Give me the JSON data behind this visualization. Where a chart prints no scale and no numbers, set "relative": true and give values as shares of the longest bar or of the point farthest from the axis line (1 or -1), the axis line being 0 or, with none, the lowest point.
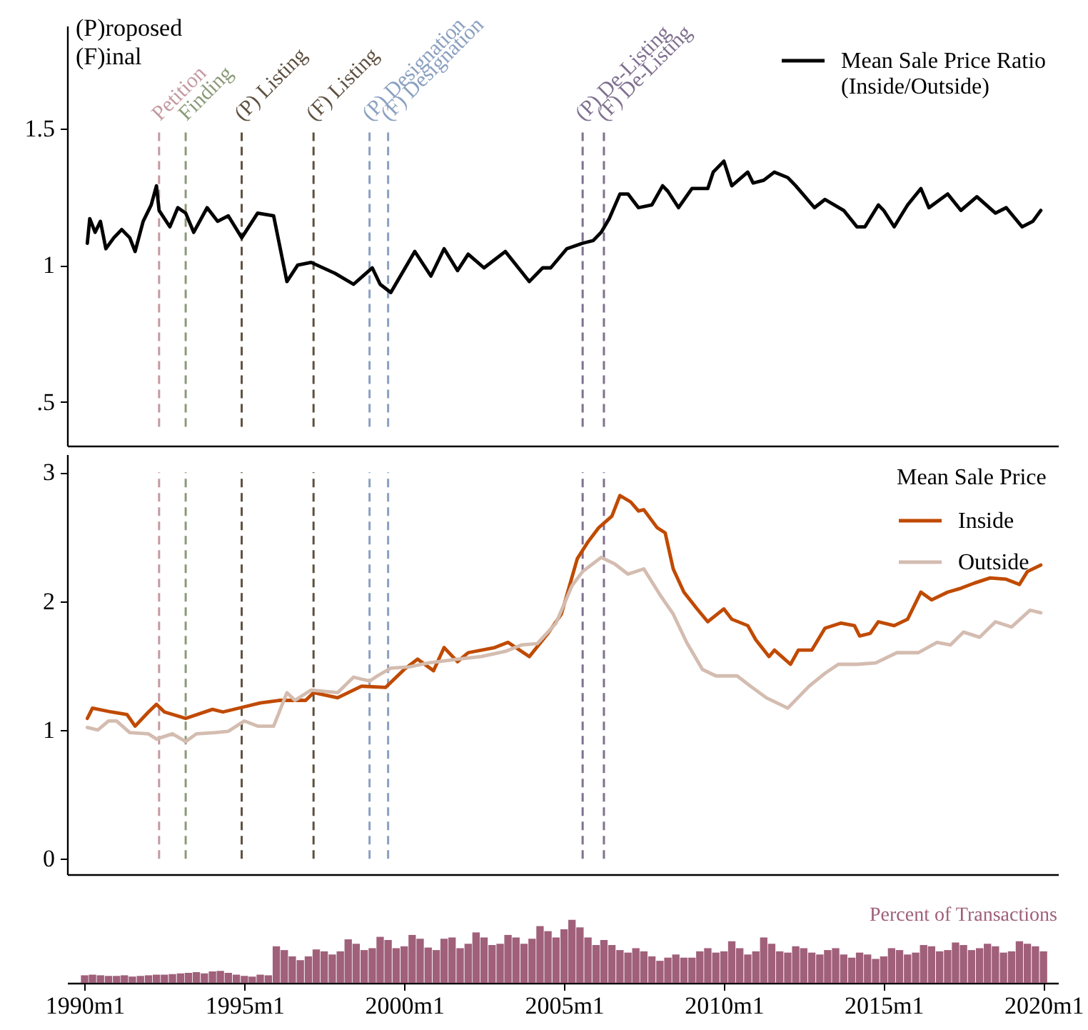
{
  "chart_data": [
    {
      "type": "line",
      "annotations": [
        "(P)roposed",
        "(F)inal"
      ],
      "xlim": [
        "1989-06-15",
        "2020-06-15"
      ],
      "ylim": [
        0.34,
        1.875
      ],
      "yticks": [
        {
          "value": 0.5,
          "label": ".5"
        },
        1,
        1.5
      ],
      "tick_labels": "y",
      "legend": "top right",
      "grid": false,
      "ref_lines": [
        {
          "axis": "x",
          "value": "1992-05",
          "label": "Petition",
          "color": "#c49aa2",
          "line_style": "dashed"
        },
        {
          "axis": "x",
          "value": "1993-03",
          "label": "Finding",
          "color": "#8a9a78",
          "line_style": "dashed"
        },
        {
          "axis": "x",
          "value": "1994-12",
          "label": "(P) Listing",
          "color": "#5e5040",
          "line_style": "dashed"
        },
        {
          "axis": "x",
          "value": "1997-03",
          "label": "(F) Listing",
          "color": "#5e5040",
          "line_style": "dashed"
        },
        {
          "axis": "x",
          "value": "1998-12",
          "label": "(P) Designation",
          "color": "#8aa0c0",
          "line_style": "dashed"
        },
        {
          "axis": "x",
          "value": "1999-07",
          "label": "(F) Designation",
          "color": "#8aa0c0",
          "line_style": "dashed"
        },
        {
          "axis": "x",
          "value": "2005-08",
          "label": "(P) De-Listing",
          "color": "#807090",
          "line_style": "dashed"
        },
        {
          "axis": "x",
          "value": "2006-04",
          "label": "(F) De-Listing",
          "color": "#807090",
          "line_style": "dashed"
        }
      ],
      "series": [
        {
          "name": "Mean Sale Price Ratio\n(Inside/Outside)",
          "color": "#000000",
          "x": [
            "1990-02",
            "1990-03",
            "1990-05",
            "1990-07",
            "1990-09",
            "1990-12",
            "1991-03",
            "1991-06",
            "1991-08",
            "1991-11",
            "1992-02",
            "1992-04",
            "1992-05",
            "1992-09",
            "1992-12",
            "1993-03",
            "1993-06",
            "1993-11",
            "1994-03",
            "1994-07",
            "1994-12",
            "1995-06",
            "1995-12",
            "1996-05",
            "1996-09",
            "1997-02",
            "1997-11",
            "1998-06",
            "1999-01",
            "1999-04",
            "1999-08",
            "2000-05",
            "2000-11",
            "2001-04",
            "2001-09",
            "2002-01",
            "2002-07",
            "2003-03",
            "2003-12",
            "2004-05",
            "2004-08",
            "2005-02",
            "2005-08",
            "2005-12",
            "2006-03",
            "2006-06",
            "2006-10",
            "2007-01",
            "2007-05",
            "2007-10",
            "2008-02",
            "2008-04",
            "2008-08",
            "2009-01",
            "2009-07",
            "2009-09",
            "2010-01",
            "2010-04",
            "2010-10",
            "2010-12",
            "2011-04",
            "2011-08",
            "2012-01",
            "2012-04",
            "2012-11",
            "2013-03",
            "2013-10",
            "2014-03",
            "2014-06",
            "2014-11",
            "2015-01",
            "2015-05",
            "2015-10",
            "2016-03",
            "2016-06",
            "2017-01",
            "2017-06",
            "2017-12",
            "2018-07",
            "2018-11",
            "2019-05",
            "2019-09",
            "2019-12"
          ],
          "values": [
            1.08,
            1.17,
            1.12,
            1.16,
            1.06,
            1.1,
            1.13,
            1.1,
            1.05,
            1.16,
            1.22,
            1.29,
            1.2,
            1.14,
            1.21,
            1.19,
            1.12,
            1.21,
            1.16,
            1.18,
            1.1,
            1.19,
            1.18,
            0.94,
            1.0,
            1.01,
            0.97,
            0.93,
            0.99,
            0.93,
            0.9,
            1.05,
            0.96,
            1.06,
            0.98,
            1.04,
            0.99,
            1.05,
            0.94,
            0.99,
            0.99,
            1.06,
            1.08,
            1.09,
            1.12,
            1.17,
            1.26,
            1.26,
            1.21,
            1.22,
            1.29,
            1.27,
            1.21,
            1.28,
            1.28,
            1.34,
            1.38,
            1.29,
            1.34,
            1.3,
            1.31,
            1.34,
            1.32,
            1.29,
            1.21,
            1.24,
            1.2,
            1.14,
            1.14,
            1.22,
            1.2,
            1.14,
            1.22,
            1.28,
            1.21,
            1.26,
            1.2,
            1.25,
            1.19,
            1.21,
            1.14,
            1.16,
            1.2
          ]
        }
      ]
    },
    {
      "type": "line",
      "xlim": [
        "1989-06-15",
        "2020-06-15"
      ],
      "ylim": [
        -0.12,
        3.14
      ],
      "yticks": [
        0,
        1,
        2,
        3
      ],
      "tick_labels": "y",
      "legend": "top right",
      "legend_title": "Mean Sale Price",
      "grid": false,
      "ref_lines": [
        {
          "axis": "x",
          "value": "1992-05",
          "color": "#c49aa2",
          "line_style": "dashed"
        },
        {
          "axis": "x",
          "value": "1993-03",
          "color": "#8a9a78",
          "line_style": "dashed"
        },
        {
          "axis": "x",
          "value": "1994-12",
          "color": "#5e5040",
          "line_style": "dashed"
        },
        {
          "axis": "x",
          "value": "1997-03",
          "color": "#5e5040",
          "line_style": "dashed"
        },
        {
          "axis": "x",
          "value": "1998-12",
          "color": "#8aa0c0",
          "line_style": "dashed"
        },
        {
          "axis": "x",
          "value": "1999-07",
          "color": "#8aa0c0",
          "line_style": "dashed"
        },
        {
          "axis": "x",
          "value": "2005-08",
          "color": "#807090",
          "line_style": "dashed"
        },
        {
          "axis": "x",
          "value": "2006-04",
          "color": "#807090",
          "line_style": "dashed"
        }
      ],
      "series": [
        {
          "name": "Inside",
          "color": "#c04a00",
          "x": [
            "1990-02",
            "1990-04",
            "1990-11",
            "1991-05",
            "1991-08",
            "1992-01",
            "1992-04",
            "1992-07",
            "1993-03",
            "1994-01",
            "1994-05",
            "1995-01",
            "1995-07",
            "1996-02",
            "1996-12",
            "1997-03",
            "1997-12",
            "1998-09",
            "1999-06",
            "2000-01",
            "2000-06",
            "2000-12",
            "2001-04",
            "2001-09",
            "2002-01",
            "2002-11",
            "2003-04",
            "2003-12",
            "2004-07",
            "2004-12",
            "2005-06",
            "2005-10",
            "2006-02",
            "2006-07",
            "2006-10",
            "2007-02",
            "2007-05",
            "2007-07",
            "2007-12",
            "2008-03",
            "2008-06",
            "2008-10",
            "2009-03",
            "2009-07",
            "2010-01",
            "2010-04",
            "2010-10",
            "2011-01",
            "2011-06",
            "2011-08",
            "2012-02",
            "2012-05",
            "2012-10",
            "2013-03",
            "2013-09",
            "2014-02",
            "2014-04",
            "2014-08",
            "2014-11",
            "2015-05",
            "2015-10",
            "2016-03",
            "2016-07",
            "2017-01",
            "2017-06",
            "2017-11",
            "2018-05",
            "2018-11",
            "2019-04",
            "2019-07",
            "2019-12"
          ],
          "values": [
            1.09,
            1.17,
            1.14,
            1.12,
            1.03,
            1.14,
            1.2,
            1.14,
            1.09,
            1.16,
            1.14,
            1.18,
            1.21,
            1.23,
            1.23,
            1.29,
            1.25,
            1.34,
            1.33,
            1.47,
            1.55,
            1.46,
            1.64,
            1.53,
            1.6,
            1.64,
            1.68,
            1.57,
            1.75,
            1.9,
            2.33,
            2.46,
            2.57,
            2.66,
            2.82,
            2.77,
            2.7,
            2.71,
            2.57,
            2.53,
            2.25,
            2.07,
            1.94,
            1.84,
            1.94,
            1.86,
            1.81,
            1.7,
            1.57,
            1.62,
            1.51,
            1.62,
            1.62,
            1.79,
            1.83,
            1.81,
            1.73,
            1.75,
            1.84,
            1.81,
            1.86,
            2.07,
            2.01,
            2.07,
            2.1,
            2.14,
            2.18,
            2.17,
            2.13,
            2.23,
            2.28
          ]
        },
        {
          "name": "Outside",
          "color": "#d4bcb0",
          "x": [
            "1990-02",
            "1990-06",
            "1990-10",
            "1991-01",
            "1991-06",
            "1992-01",
            "1992-04",
            "1992-10",
            "1993-03",
            "1993-07",
            "1994-02",
            "1994-07",
            "1995-01",
            "1995-06",
            "1995-12",
            "1996-05",
            "1996-08",
            "1997-02",
            "1997-12",
            "1998-06",
            "1998-12",
            "1999-03",
            "1999-08",
            "2000-03",
            "2000-10",
            "2001-09",
            "2002-06",
            "2003-03",
            "2003-09",
            "2004-03",
            "2004-10",
            "2005-04",
            "2005-08",
            "2006-03",
            "2006-08",
            "2007-01",
            "2007-07",
            "2008-01",
            "2008-06",
            "2008-11",
            "2009-05",
            "2009-10",
            "2010-06",
            "2010-11",
            "2011-05",
            "2012-01",
            "2012-09",
            "2013-03",
            "2013-08",
            "2014-03",
            "2014-10",
            "2015-06",
            "2016-02",
            "2016-09",
            "2017-02",
            "2017-07",
            "2018-01",
            "2018-07",
            "2019-01",
            "2019-08",
            "2019-12"
          ],
          "values": [
            1.02,
            1.0,
            1.07,
            1.07,
            0.98,
            0.97,
            0.93,
            0.97,
            0.91,
            0.97,
            0.98,
            0.99,
            1.07,
            1.03,
            1.03,
            1.29,
            1.23,
            1.31,
            1.29,
            1.41,
            1.38,
            1.42,
            1.48,
            1.49,
            1.52,
            1.55,
            1.57,
            1.61,
            1.66,
            1.67,
            1.83,
            2.12,
            2.23,
            2.34,
            2.29,
            2.21,
            2.25,
            2.05,
            1.9,
            1.68,
            1.47,
            1.42,
            1.42,
            1.34,
            1.25,
            1.17,
            1.34,
            1.44,
            1.51,
            1.51,
            1.52,
            1.6,
            1.6,
            1.68,
            1.66,
            1.76,
            1.72,
            1.84,
            1.8,
            1.93,
            1.91
          ]
        }
      ]
    },
    {
      "type": "bar",
      "relative": true,
      "xlim": [
        "1989-06-15",
        "2020-06-15"
      ],
      "legend": "top right",
      "grid": false,
      "xticks": [
        {
          "value": "1990-01",
          "label": "1990m1"
        },
        {
          "value": "1995-01",
          "label": "1995m1"
        },
        {
          "value": "2000-01",
          "label": "2000m1"
        },
        {
          "value": "2005-01",
          "label": "2005m1"
        },
        {
          "value": "2010-01",
          "label": "2010m1"
        },
        {
          "value": "2015-01",
          "label": "2015m1"
        },
        {
          "value": "2020-01",
          "label": "2020m1"
        }
      ],
      "series": [
        {
          "name": "Percent of Transactions",
          "color": "#a0607a",
          "x": [
            "1990-01",
            "1990-04",
            "1990-07",
            "1990-10",
            "1991-01",
            "1991-04",
            "1991-07",
            "1991-10",
            "1992-01",
            "1992-04",
            "1992-07",
            "1992-10",
            "1993-01",
            "1993-04",
            "1993-07",
            "1993-10",
            "1994-01",
            "1994-04",
            "1994-07",
            "1994-10",
            "1995-01",
            "1995-04",
            "1995-07",
            "1995-10",
            "1996-01",
            "1996-04",
            "1996-07",
            "1996-10",
            "1997-01",
            "1997-04",
            "1997-07",
            "1997-10",
            "1998-01",
            "1998-04",
            "1998-07",
            "1998-10",
            "1999-01",
            "1999-04",
            "1999-07",
            "1999-10",
            "2000-01",
            "2000-04",
            "2000-07",
            "2000-10",
            "2001-01",
            "2001-04",
            "2001-07",
            "2001-10",
            "2002-01",
            "2002-04",
            "2002-07",
            "2002-10",
            "2003-01",
            "2003-04",
            "2003-07",
            "2003-10",
            "2004-01",
            "2004-04",
            "2004-07",
            "2004-10",
            "2005-01",
            "2005-04",
            "2005-07",
            "2005-10",
            "2006-01",
            "2006-04",
            "2006-07",
            "2006-10",
            "2007-01",
            "2007-04",
            "2007-07",
            "2007-10",
            "2008-01",
            "2008-04",
            "2008-07",
            "2008-10",
            "2009-01",
            "2009-04",
            "2009-07",
            "2009-10",
            "2010-01",
            "2010-04",
            "2010-07",
            "2010-10",
            "2011-01",
            "2011-04",
            "2011-07",
            "2011-10",
            "2012-01",
            "2012-04",
            "2012-07",
            "2012-10",
            "2013-01",
            "2013-04",
            "2013-07",
            "2013-10",
            "2014-01",
            "2014-04",
            "2014-07",
            "2014-10",
            "2015-01",
            "2015-04",
            "2015-07",
            "2015-10",
            "2016-01",
            "2016-04",
            "2016-07",
            "2016-10",
            "2017-01",
            "2017-04",
            "2017-07",
            "2017-10",
            "2018-01",
            "2018-04",
            "2018-07",
            "2018-10",
            "2019-01",
            "2019-04",
            "2019-07",
            "2019-10",
            "2020-01"
          ],
          "values": [
            0.12,
            0.13,
            0.12,
            0.11,
            0.11,
            0.12,
            0.1,
            0.11,
            0.12,
            0.13,
            0.13,
            0.14,
            0.15,
            0.16,
            0.17,
            0.15,
            0.18,
            0.19,
            0.16,
            0.13,
            0.11,
            0.1,
            0.13,
            0.12,
            0.58,
            0.52,
            0.42,
            0.36,
            0.42,
            0.53,
            0.5,
            0.45,
            0.5,
            0.69,
            0.62,
            0.52,
            0.55,
            0.73,
            0.68,
            0.55,
            0.58,
            0.76,
            0.7,
            0.56,
            0.52,
            0.7,
            0.72,
            0.55,
            0.62,
            0.8,
            0.72,
            0.6,
            0.62,
            0.76,
            0.72,
            0.62,
            0.7,
            0.9,
            0.82,
            0.72,
            0.85,
            1.0,
            0.88,
            0.72,
            0.6,
            0.68,
            0.6,
            0.52,
            0.48,
            0.55,
            0.5,
            0.42,
            0.35,
            0.4,
            0.45,
            0.4,
            0.4,
            0.5,
            0.55,
            0.48,
            0.5,
            0.66,
            0.55,
            0.45,
            0.5,
            0.72,
            0.62,
            0.5,
            0.48,
            0.58,
            0.55,
            0.48,
            0.45,
            0.52,
            0.55,
            0.45,
            0.4,
            0.48,
            0.45,
            0.38,
            0.42,
            0.55,
            0.52,
            0.45,
            0.48,
            0.6,
            0.58,
            0.5,
            0.52,
            0.64,
            0.6,
            0.52,
            0.55,
            0.62,
            0.58,
            0.48,
            0.5,
            0.66,
            0.62,
            0.58,
            0.5
          ]
        }
      ]
    }
  ]
}
